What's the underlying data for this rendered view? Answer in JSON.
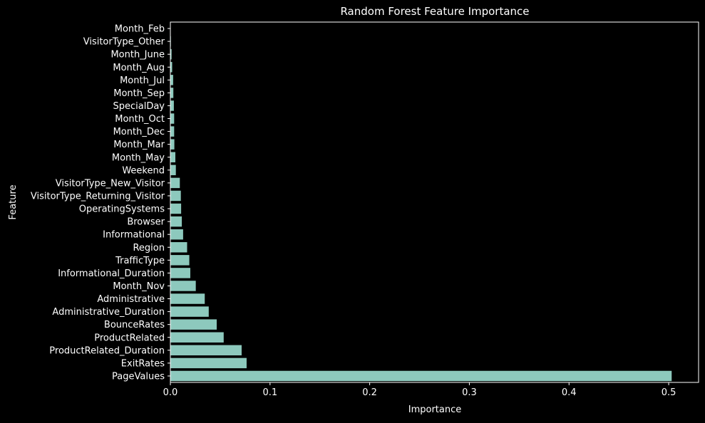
{
  "chart_data": {
    "type": "bar",
    "orientation": "horizontal",
    "title": "Random Forest Feature Importance",
    "xlabel": "Importance",
    "ylabel": "Feature",
    "xlim": [
      0,
      0.53
    ],
    "xticks": [
      0.0,
      0.1,
      0.2,
      0.3,
      0.4,
      0.5
    ],
    "xtick_labels": [
      "0.0",
      "0.1",
      "0.2",
      "0.3",
      "0.4",
      "0.5"
    ],
    "grid": false,
    "bar_color": "#8dc9bd",
    "background": "#000000",
    "foreground": "#ffffff",
    "categories": [
      "Month_Feb",
      "VisitorType_Other",
      "Month_June",
      "Month_Aug",
      "Month_Jul",
      "Month_Sep",
      "SpecialDay",
      "Month_Oct",
      "Month_Dec",
      "Month_Mar",
      "Month_May",
      "Weekend",
      "VisitorType_New_Visitor",
      "VisitorType_Returning_Visitor",
      "OperatingSystems",
      "Browser",
      "Informational",
      "Region",
      "TrafficType",
      "Informational_Duration",
      "Month_Nov",
      "Administrative",
      "Administrative_Duration",
      "BounceRates",
      "ProductRelated",
      "ProductRelated_Duration",
      "ExitRates",
      "PageValues"
    ],
    "values": [
      0.0003,
      0.0005,
      0.0012,
      0.0018,
      0.0028,
      0.003,
      0.0035,
      0.0038,
      0.0038,
      0.004,
      0.005,
      0.0055,
      0.0095,
      0.0105,
      0.0108,
      0.0115,
      0.0128,
      0.0168,
      0.019,
      0.02,
      0.0255,
      0.0345,
      0.0385,
      0.0465,
      0.0535,
      0.0715,
      0.0765,
      0.503
    ]
  }
}
